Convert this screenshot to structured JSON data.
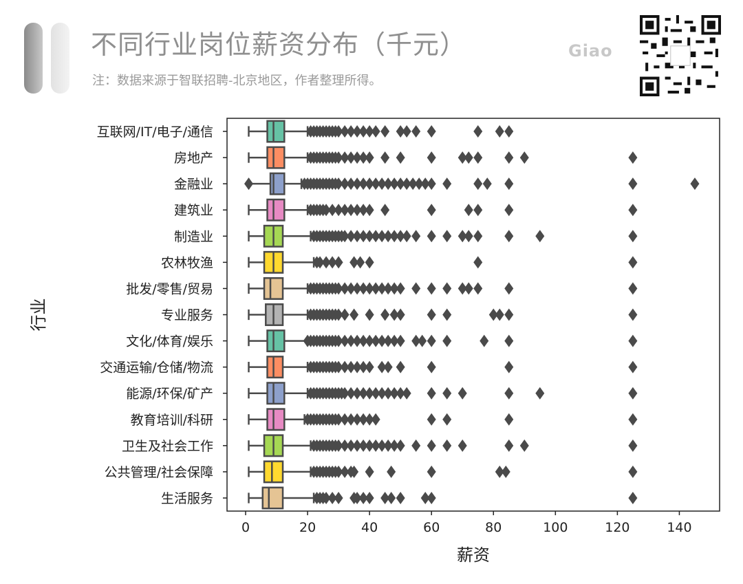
{
  "header": {
    "title": "不同行业岗位薪资分布（千元）",
    "subtitle": "注：数据来源于智联招聘-北京地区，作者整理所得。",
    "logo": "Giao"
  },
  "chart_data": {
    "type": "boxplot",
    "orientation": "horizontal",
    "xlabel": "薪资",
    "ylabel": "行业",
    "xlim": [
      -6,
      153
    ],
    "xticks": [
      0,
      20,
      40,
      60,
      80,
      100,
      120,
      140
    ],
    "grid": false,
    "categories": [
      "互联网/IT/电子/通信",
      "房地产",
      "金融业",
      "建筑业",
      "制造业",
      "农林牧渔",
      "批发/零售/贸易",
      "专业服务",
      "文化/体育/娱乐",
      "交通运输/仓储/物流",
      "能源/环保/矿产",
      "教育培训/科研",
      "卫生及社会工作",
      "公共管理/社会保障",
      "生活服务"
    ],
    "series": [
      {
        "q1": 7,
        "median": 9,
        "q3": 12.5,
        "whisker_low": 1,
        "whisker_high": 20,
        "color": "#66c2a5",
        "outliers": [
          21,
          22,
          23,
          24,
          25,
          26,
          27,
          28,
          29,
          30,
          32,
          34,
          36,
          38,
          40,
          42,
          45,
          50,
          52,
          55,
          60,
          75,
          82,
          85
        ]
      },
      {
        "q1": 7,
        "median": 9,
        "q3": 12.5,
        "whisker_low": 1,
        "whisker_high": 20,
        "color": "#fc8d62",
        "outliers": [
          21,
          22,
          23,
          24,
          25,
          26,
          27,
          28,
          29,
          30,
          32,
          34,
          36,
          38,
          40,
          45,
          50,
          60,
          70,
          72,
          75,
          85,
          90,
          125
        ]
      },
      {
        "q1": 8,
        "median": 9,
        "q3": 12.5,
        "whisker_low": 1,
        "whisker_high": 18,
        "color": "#8da0cb",
        "outliers": [
          1,
          19,
          20,
          21,
          22,
          23,
          24,
          25,
          26,
          27,
          28,
          29,
          30,
          32,
          34,
          36,
          38,
          40,
          42,
          44,
          46,
          48,
          50,
          52,
          54,
          56,
          58,
          60,
          65,
          75,
          78,
          85,
          125,
          145
        ]
      },
      {
        "q1": 7,
        "median": 9,
        "q3": 12.5,
        "whisker_low": 1,
        "whisker_high": 20,
        "color": "#e78ac3",
        "outliers": [
          21,
          22,
          23,
          24,
          25,
          26,
          28,
          30,
          32,
          34,
          36,
          38,
          40,
          45,
          60,
          72,
          75,
          85,
          125
        ]
      },
      {
        "q1": 6,
        "median": 9,
        "q3": 12,
        "whisker_low": 1,
        "whisker_high": 21,
        "color": "#a6d854",
        "outliers": [
          22,
          23,
          24,
          25,
          26,
          27,
          28,
          29,
          30,
          31,
          32,
          34,
          36,
          38,
          40,
          42,
          44,
          46,
          48,
          50,
          52,
          55,
          60,
          65,
          70,
          72,
          75,
          85,
          95,
          125
        ]
      },
      {
        "q1": 6,
        "median": 9,
        "q3": 12,
        "whisker_low": 1,
        "whisker_high": 22,
        "color": "#ffd92f",
        "outliers": [
          23,
          24,
          26,
          28,
          30,
          35,
          37,
          40,
          75,
          125
        ]
      },
      {
        "q1": 6,
        "median": 8,
        "q3": 12,
        "whisker_low": 1,
        "whisker_high": 20,
        "color": "#e5c494",
        "outliers": [
          21,
          22,
          23,
          24,
          25,
          26,
          27,
          28,
          29,
          30,
          32,
          34,
          36,
          38,
          40,
          42,
          44,
          46,
          48,
          50,
          55,
          60,
          65,
          70,
          72,
          75,
          85,
          125
        ]
      },
      {
        "q1": 6.5,
        "median": 9,
        "q3": 12,
        "whisker_low": 1,
        "whisker_high": 20,
        "color": "#b3b3b3",
        "outliers": [
          21,
          22,
          23,
          24,
          25,
          26,
          27,
          28,
          29,
          30,
          32,
          35,
          40,
          45,
          48,
          50,
          60,
          65,
          80,
          82,
          85,
          125
        ]
      },
      {
        "q1": 7,
        "median": 9,
        "q3": 12.5,
        "whisker_low": 1,
        "whisker_high": 20,
        "color": "#66c2a5",
        "outliers": [
          20,
          21,
          22,
          23,
          24,
          25,
          26,
          27,
          28,
          29,
          30,
          32,
          34,
          36,
          38,
          40,
          42,
          44,
          46,
          48,
          50,
          55,
          57,
          60,
          65,
          77,
          85,
          125
        ]
      },
      {
        "q1": 7,
        "median": 9,
        "q3": 12,
        "whisker_low": 1,
        "whisker_high": 20,
        "color": "#fc8d62",
        "outliers": [
          21,
          22,
          23,
          24,
          25,
          26,
          27,
          28,
          29,
          30,
          32,
          34,
          36,
          38,
          40,
          44,
          46,
          50,
          60,
          85,
          125
        ]
      },
      {
        "q1": 7,
        "median": 9,
        "q3": 12.5,
        "whisker_low": 1,
        "whisker_high": 20,
        "color": "#8da0cb",
        "outliers": [
          21,
          22,
          23,
          24,
          25,
          26,
          27,
          28,
          29,
          30,
          31,
          32,
          34,
          36,
          38,
          40,
          42,
          44,
          46,
          48,
          50,
          52,
          60,
          65,
          70,
          85,
          95,
          125
        ]
      },
      {
        "q1": 7,
        "median": 9,
        "q3": 12.5,
        "whisker_low": 1,
        "whisker_high": 19,
        "color": "#e78ac3",
        "outliers": [
          20,
          21,
          22,
          23,
          24,
          25,
          26,
          27,
          28,
          29,
          30,
          32,
          34,
          36,
          38,
          40,
          42,
          60,
          65,
          85,
          125
        ]
      },
      {
        "q1": 6,
        "median": 9,
        "q3": 12,
        "whisker_low": 1,
        "whisker_high": 21,
        "color": "#a6d854",
        "outliers": [
          22,
          23,
          24,
          25,
          26,
          27,
          28,
          29,
          30,
          32,
          34,
          36,
          38,
          40,
          42,
          44,
          46,
          48,
          50,
          55,
          60,
          65,
          70,
          85,
          90,
          125
        ]
      },
      {
        "q1": 6,
        "median": 8.5,
        "q3": 12,
        "whisker_low": 1,
        "whisker_high": 21,
        "color": "#ffd92f",
        "outliers": [
          22,
          23,
          24,
          25,
          26,
          27,
          28,
          29,
          30,
          32,
          34,
          35,
          40,
          47,
          60,
          82,
          84,
          125
        ]
      },
      {
        "q1": 5.5,
        "median": 7.5,
        "q3": 12,
        "whisker_low": 1,
        "whisker_high": 22,
        "color": "#e5c494",
        "outliers": [
          23,
          24,
          25,
          26,
          28,
          30,
          35,
          36,
          38,
          40,
          45,
          47,
          50,
          58,
          60,
          125
        ]
      }
    ]
  }
}
